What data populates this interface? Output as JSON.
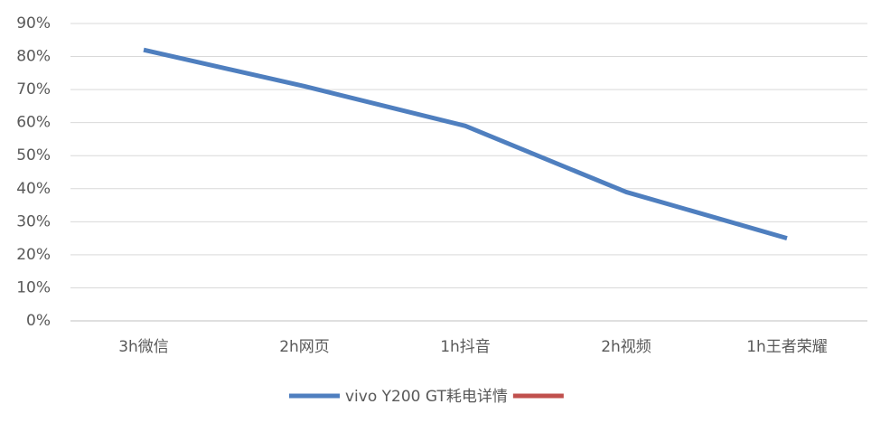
{
  "chart_data": {
    "type": "line",
    "categories": [
      "3h微信",
      "2h网页",
      "1h抖音",
      "2h视频",
      "1h王者荣耀"
    ],
    "series": [
      {
        "name": "vivo Y200 GT耗电详情",
        "color": "#4f7fbf",
        "values": [
          82,
          71,
          59,
          39,
          25
        ]
      },
      {
        "color": "#c0504d",
        "values": [
          null,
          null,
          null,
          null,
          null
        ]
      }
    ],
    "ylim": [
      0,
      90
    ],
    "yticks": [
      {
        "value": 0,
        "label": "0%"
      },
      {
        "value": 10,
        "label": "10%"
      },
      {
        "value": 20,
        "label": "20%"
      },
      {
        "value": 30,
        "label": "30%"
      },
      {
        "value": 40,
        "label": "40%"
      },
      {
        "value": 50,
        "label": "50%"
      },
      {
        "value": 60,
        "label": "60%"
      },
      {
        "value": 70,
        "label": "70%"
      },
      {
        "value": 80,
        "label": "80%"
      },
      {
        "value": 90,
        "label": "90%"
      }
    ],
    "grid": true,
    "legend": "bottom"
  }
}
